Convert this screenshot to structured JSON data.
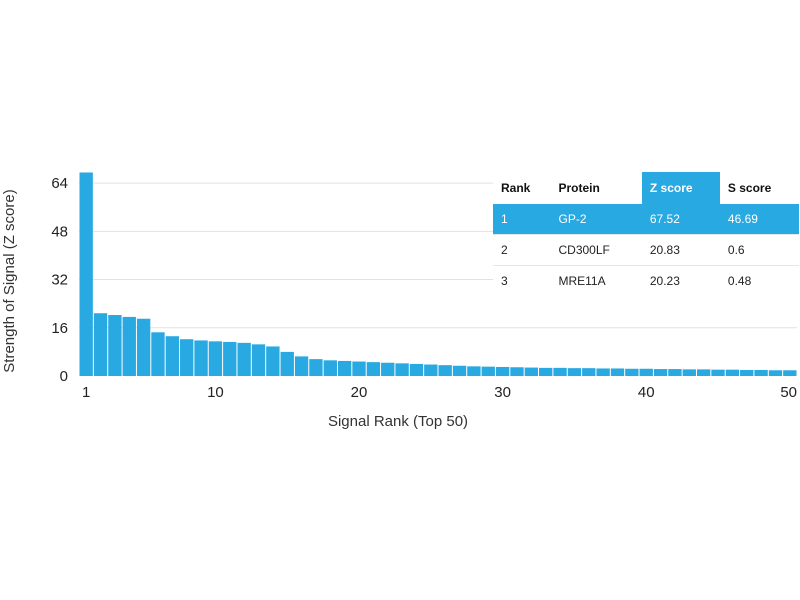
{
  "chart_data": {
    "type": "bar",
    "ylabel": "Strength of Signal (Z score)",
    "xlabel": "Signal Rank (Top 50)",
    "ylim": [
      0,
      70
    ],
    "xlim": [
      1,
      50
    ],
    "yticks": [
      0,
      16,
      32,
      48,
      64
    ],
    "xticks": [
      1,
      10,
      20,
      30,
      40,
      50
    ],
    "grid": "horizontal",
    "bar_color": "#29a9e1",
    "x": [
      1,
      2,
      3,
      4,
      5,
      6,
      7,
      8,
      9,
      10,
      11,
      12,
      13,
      14,
      15,
      16,
      17,
      18,
      19,
      20,
      21,
      22,
      23,
      24,
      25,
      26,
      27,
      28,
      29,
      30,
      31,
      32,
      33,
      34,
      35,
      36,
      37,
      38,
      39,
      40,
      41,
      42,
      43,
      44,
      45,
      46,
      47,
      48,
      49,
      50
    ],
    "values": [
      67.52,
      20.83,
      20.23,
      19.6,
      19.0,
      14.5,
      13.2,
      12.2,
      11.8,
      11.5,
      11.3,
      11.0,
      10.5,
      9.8,
      8.0,
      6.5,
      5.6,
      5.2,
      5.0,
      4.8,
      4.6,
      4.4,
      4.2,
      4.0,
      3.8,
      3.6,
      3.4,
      3.2,
      3.1,
      3.0,
      2.9,
      2.8,
      2.7,
      2.7,
      2.6,
      2.6,
      2.5,
      2.5,
      2.4,
      2.4,
      2.3,
      2.3,
      2.2,
      2.2,
      2.1,
      2.1,
      2.0,
      2.0,
      1.9,
      1.9
    ]
  },
  "table": {
    "headers": [
      "Rank",
      "Protein",
      "Z score",
      "S score"
    ],
    "rows": [
      [
        "1",
        "GP-2",
        "67.52",
        "46.69"
      ],
      [
        "2",
        "CD300LF",
        "20.83",
        "0.6"
      ],
      [
        "3",
        "MRE11A",
        "20.23",
        "0.48"
      ]
    ]
  }
}
